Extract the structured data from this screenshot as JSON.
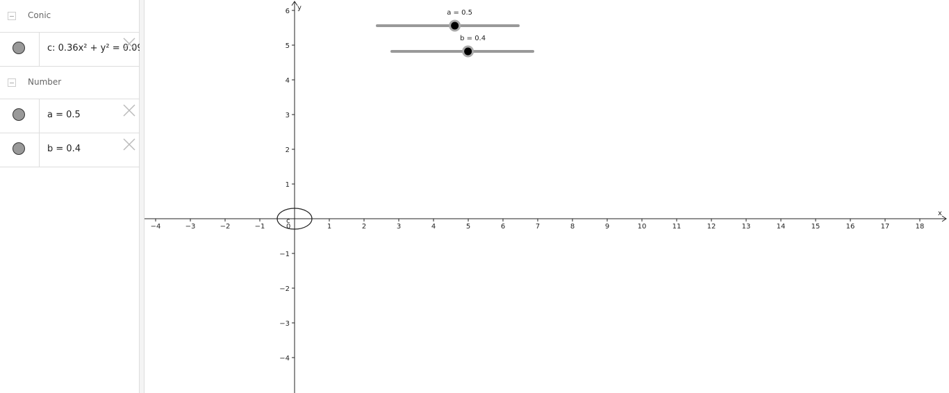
{
  "algebra": {
    "groups": [
      {
        "title": "Conic",
        "items": [
          {
            "text": "c: 0.36x² + y² = 0.09"
          }
        ]
      },
      {
        "title": "Number",
        "items": [
          {
            "text": "a = 0.5"
          },
          {
            "text": "b = 0.4"
          }
        ]
      }
    ]
  },
  "graphics": {
    "xlabel": "x",
    "ylabel": "y",
    "origin_label": "0",
    "xlim": [
      -4.32,
      18.84
    ],
    "ylim": [
      -5.02,
      6.3
    ],
    "xticks": [
      {
        "value": -4,
        "label": "−4"
      },
      {
        "value": -3,
        "label": "−3"
      },
      {
        "value": -2,
        "label": "−2"
      },
      {
        "value": -1,
        "label": "−1"
      },
      1,
      2,
      3,
      4,
      5,
      6,
      7,
      8,
      9,
      10,
      11,
      12,
      13,
      14,
      15,
      16,
      17,
      18
    ],
    "yticks": [
      {
        "value": -4,
        "label": "−4"
      },
      {
        "value": -3,
        "label": "−3"
      },
      {
        "value": -2,
        "label": "−2"
      },
      {
        "value": -1,
        "label": "−1"
      },
      1,
      2,
      3,
      4,
      5,
      6
    ],
    "conic": {
      "label": "c",
      "x2_coef": 0.36,
      "rhs": 0.09
    },
    "sliders": [
      {
        "label": "a = 0.5",
        "value": 0.5,
        "min": -5,
        "max": 5
      },
      {
        "label": "b = 0.4",
        "value": 0.4,
        "min": -5,
        "max": 5
      }
    ]
  }
}
